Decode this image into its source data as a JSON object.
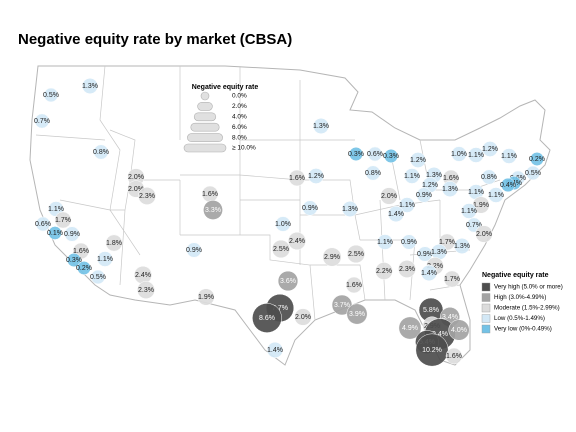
{
  "title": "Negative equity rate by market (CBSA)",
  "size_legend": {
    "title": "Negative equity rate",
    "ticks": [
      {
        "value": 0,
        "label": "0.0%"
      },
      {
        "value": 2,
        "label": "2.0%"
      },
      {
        "value": 4,
        "label": "4.0%"
      },
      {
        "value": 6,
        "label": "6.0%"
      },
      {
        "value": 8,
        "label": "8.0%"
      },
      {
        "value": 10,
        "label": "≥ 10.0%"
      }
    ]
  },
  "color_legend": {
    "title": "Negative equity rate",
    "items": [
      {
        "label": "Very high (5.0% or more)",
        "min": 5,
        "color": "#4d4d4d"
      },
      {
        "label": "High (3.0%-4.99%)",
        "min": 3,
        "color": "#a3a3a3"
      },
      {
        "label": "Moderate (1.5%-2.99%)",
        "min": 1.5,
        "color": "#dcdcdc"
      },
      {
        "label": "Low (0.5%-1.49%)",
        "min": 0.5,
        "color": "#d3e8f6"
      },
      {
        "label": "Very low (0%-0.49%)",
        "min": 0,
        "color": "#74c2e6"
      }
    ]
  },
  "bubbles": [
    {
      "value": 0.5,
      "label": "0.5%"
    },
    {
      "value": 1.3,
      "label": "1.3%"
    },
    {
      "value": 0.7,
      "label": "0.7%"
    },
    {
      "value": 0.8,
      "label": "0.8%"
    },
    {
      "value": 2.0,
      "label": "2.0%"
    },
    {
      "value": 2.0,
      "label": "2.0%"
    },
    {
      "value": 2.3,
      "label": "2.3%"
    },
    {
      "value": 1.6,
      "label": "1.6%"
    },
    {
      "value": 3.3,
      "label": "3.3%"
    },
    {
      "value": 1.3,
      "label": "1.3%"
    },
    {
      "value": 1.6,
      "label": "1.6%"
    },
    {
      "value": 1.2,
      "label": "1.2%"
    },
    {
      "value": 0.3,
      "label": "0.3%"
    },
    {
      "value": 0.6,
      "label": "0.6%"
    },
    {
      "value": 0.3,
      "label": "0.3%"
    },
    {
      "value": 1.2,
      "label": "1.2%"
    },
    {
      "value": 1.0,
      "label": "1.0%"
    },
    {
      "value": 1.1,
      "label": "1.1%"
    },
    {
      "value": 1.2,
      "label": "1.2%"
    },
    {
      "value": 1.1,
      "label": "1.1%"
    },
    {
      "value": 0.2,
      "label": "0.2%"
    },
    {
      "value": 0.8,
      "label": "0.8%"
    },
    {
      "value": 1.1,
      "label": "1.1%"
    },
    {
      "value": 1.3,
      "label": "1.3%"
    },
    {
      "value": 1.6,
      "label": "1.6%"
    },
    {
      "value": 1.2,
      "label": "1.2%"
    },
    {
      "value": 0.8,
      "label": "0.8%"
    },
    {
      "value": 0.6,
      "label": "0.6%"
    },
    {
      "value": 0.4,
      "label": "0.4%"
    },
    {
      "value": 0.5,
      "label": "0.5%"
    },
    {
      "value": 0.4,
      "label": "0.4%"
    },
    {
      "value": 1.3,
      "label": "1.3%"
    },
    {
      "value": 1.1,
      "label": "1.1%"
    },
    {
      "value": 1.1,
      "label": "1.1%"
    },
    {
      "value": 2.0,
      "label": "2.0%"
    },
    {
      "value": 1.1,
      "label": "1.1%"
    },
    {
      "value": 0.9,
      "label": "0.9%"
    },
    {
      "value": 1.4,
      "label": "1.4%"
    },
    {
      "value": 1.9,
      "label": "1.9%"
    },
    {
      "value": 1.1,
      "label": "1.1%"
    },
    {
      "value": 0.9,
      "label": "0.9%"
    },
    {
      "value": 1.3,
      "label": "1.3%"
    },
    {
      "value": 1.0,
      "label": "1.0%"
    },
    {
      "value": 0.7,
      "label": "0.7%"
    },
    {
      "value": 2.0,
      "label": "2.0%"
    },
    {
      "value": 1.1,
      "label": "1.1%"
    },
    {
      "value": 1.7,
      "label": "1.7%"
    },
    {
      "value": 0.6,
      "label": "0.6%"
    },
    {
      "value": 0.1,
      "label": "0.1%"
    },
    {
      "value": 0.9,
      "label": "0.9%"
    },
    {
      "value": 1.8,
      "label": "1.8%"
    },
    {
      "value": 1.6,
      "label": "1.6%"
    },
    {
      "value": 0.3,
      "label": "0.3%"
    },
    {
      "value": 0.2,
      "label": "0.2%"
    },
    {
      "value": 1.1,
      "label": "1.1%"
    },
    {
      "value": 0.5,
      "label": "0.5%"
    },
    {
      "value": 0.9,
      "label": "0.9%"
    },
    {
      "value": 2.4,
      "label": "2.4%"
    },
    {
      "value": 2.5,
      "label": "2.5%"
    },
    {
      "value": 2.9,
      "label": "2.9%"
    },
    {
      "value": 2.5,
      "label": "2.5%"
    },
    {
      "value": 1.1,
      "label": "1.1%"
    },
    {
      "value": 0.9,
      "label": "0.9%"
    },
    {
      "value": 1.7,
      "label": "1.7%"
    },
    {
      "value": 1.3,
      "label": "1.3%"
    },
    {
      "value": 0.9,
      "label": "0.9%"
    },
    {
      "value": 1.3,
      "label": "1.3%"
    },
    {
      "value": 2.2,
      "label": "2.2%"
    },
    {
      "value": 1.4,
      "label": "1.4%"
    },
    {
      "value": 1.7,
      "label": "1.7%"
    },
    {
      "value": 2.2,
      "label": "2.2%"
    },
    {
      "value": 2.3,
      "label": "2.3%"
    },
    {
      "value": 1.6,
      "label": "1.6%"
    },
    {
      "value": 2.4,
      "label": "2.4%"
    },
    {
      "value": 2.3,
      "label": "2.3%"
    },
    {
      "value": 1.9,
      "label": "1.9%"
    },
    {
      "value": 3.6,
      "label": "3.6%"
    },
    {
      "value": 3.7,
      "label": "3.7%"
    },
    {
      "value": 3.9,
      "label": "3.9%"
    },
    {
      "value": 7.7,
      "label": "7.7%"
    },
    {
      "value": 8.6,
      "label": "8.6%"
    },
    {
      "value": 2.0,
      "label": "2.0%"
    },
    {
      "value": 1.4,
      "label": "1.4%"
    },
    {
      "value": 5.8,
      "label": "5.8%"
    },
    {
      "value": 3.4,
      "label": "3.4%"
    },
    {
      "value": 2.9,
      "label": "2.9%"
    },
    {
      "value": 4.9,
      "label": "4.9%"
    },
    {
      "value": 9.4,
      "label": "9.4%"
    },
    {
      "value": 4.0,
      "label": "4.0%"
    },
    {
      "value": 5.4,
      "label": "5.4%"
    },
    {
      "value": 10.2,
      "label": "10.2%"
    },
    {
      "value": 1.6,
      "label": "1.6%"
    }
  ]
}
